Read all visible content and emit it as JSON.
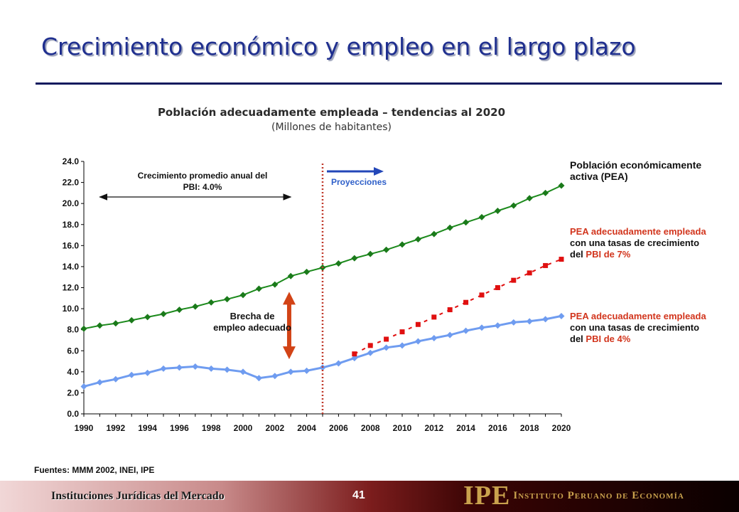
{
  "slide": {
    "title": "Crecimiento económico y empleo en el largo plazo",
    "sources": "Fuentes: MMM 2002, INEI, IPE",
    "footer_left": "Instituciones Jurídicas del Mercado",
    "page_number": "41",
    "logo_mark": "IPE",
    "logo_name": "Instituto Peruano de Economía"
  },
  "colors": {
    "pea": "#1c8a1c",
    "pea_marker": "#1a7a1a",
    "adequate4": "#6f9cf0",
    "adequate7": "#e01010",
    "gap_arrow": "#d24316",
    "divider": "#c0392b",
    "proj_arrow": "#2347b8"
  },
  "annotations": {
    "pea_label": "Población económicamente activa (PEA)",
    "n7_a": "PEA adecuadamente empleada",
    "n7_b": " con una tasas de crecimiento del ",
    "n7_c": "PBI de 7%",
    "n4_a": "PEA adecuadamente empleada",
    "n4_b": " con una tasas de crecimiento del ",
    "n4_c": "PBI de 4%",
    "gdp_note": "Crecimiento promedio anual del PBI: 4.0%",
    "gap_note": "Brecha de empleo adecuado",
    "projections": "Proyecciones"
  },
  "chart_data": {
    "type": "line",
    "title": "Población adecuadamente empleada – tendencias al 2020",
    "subtitle": "(Millones de habitantes)",
    "ylim": [
      0,
      24
    ],
    "yticks": [
      "0.0",
      "2.0",
      "4.0",
      "6.0",
      "8.0",
      "10.0",
      "12.0",
      "14.0",
      "16.0",
      "18.0",
      "20.0",
      "22.0",
      "24.0"
    ],
    "xlim": [
      1990,
      2020
    ],
    "xticks": [
      "1990",
      "1992",
      "1994",
      "1996",
      "1998",
      "2000",
      "2002",
      "2004",
      "2006",
      "2008",
      "2010",
      "2012",
      "2014",
      "2016",
      "2018",
      "2020"
    ],
    "projection_start": 2005,
    "gdp_bracket": [
      1991,
      2003
    ],
    "gap_arrow": {
      "x": 2002.9,
      "y": [
        5.2,
        11.6
      ]
    },
    "series": [
      {
        "key": "pea",
        "x": [
          1990,
          1991,
          1992,
          1993,
          1994,
          1995,
          1996,
          1997,
          1998,
          1999,
          2000,
          2001,
          2002,
          2003,
          2004,
          2005,
          2006,
          2007,
          2008,
          2009,
          2010,
          2011,
          2012,
          2013,
          2014,
          2015,
          2016,
          2017,
          2018,
          2019,
          2020
        ],
        "y": [
          8.1,
          8.4,
          8.6,
          8.9,
          9.2,
          9.5,
          9.9,
          10.2,
          10.6,
          10.9,
          11.3,
          11.9,
          12.3,
          13.1,
          13.5,
          13.9,
          14.3,
          14.8,
          15.2,
          15.6,
          16.1,
          16.6,
          17.1,
          17.7,
          18.2,
          18.7,
          19.3,
          19.8,
          20.5,
          21.0,
          21.7
        ]
      },
      {
        "key": "adequate4",
        "x": [
          1990,
          1991,
          1992,
          1993,
          1994,
          1995,
          1996,
          1997,
          1998,
          1999,
          2000,
          2001,
          2002,
          2003,
          2004,
          2005,
          2006,
          2007,
          2008,
          2009,
          2010,
          2011,
          2012,
          2013,
          2014,
          2015,
          2016,
          2017,
          2018,
          2019,
          2020
        ],
        "y": [
          2.6,
          3.0,
          3.3,
          3.7,
          3.9,
          4.3,
          4.4,
          4.5,
          4.3,
          4.2,
          4.0,
          3.4,
          3.6,
          4.0,
          4.1,
          4.4,
          4.8,
          5.3,
          5.8,
          6.3,
          6.5,
          6.9,
          7.2,
          7.5,
          7.9,
          8.2,
          8.4,
          8.7,
          8.8,
          9.0,
          9.3
        ]
      },
      {
        "key": "adequate7",
        "x": [
          2007,
          2008,
          2009,
          2010,
          2011,
          2012,
          2013,
          2014,
          2015,
          2016,
          2017,
          2018,
          2019,
          2020
        ],
        "y": [
          5.7,
          6.5,
          7.1,
          7.8,
          8.5,
          9.2,
          9.9,
          10.6,
          11.3,
          12.0,
          12.7,
          13.4,
          14.1,
          14.7
        ]
      }
    ]
  }
}
